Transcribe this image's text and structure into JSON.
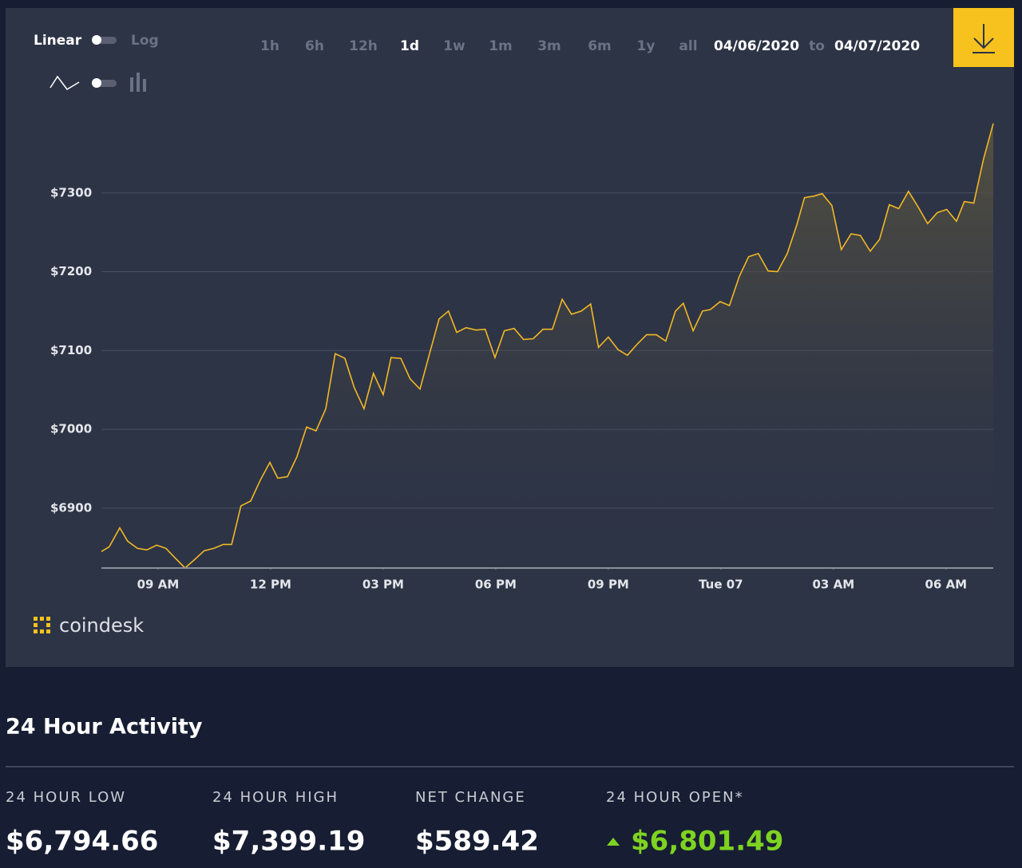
{
  "controls": {
    "scale_left": "Linear",
    "scale_right": "Log",
    "ranges": [
      "1h",
      "6h",
      "12h",
      "1d",
      "1w",
      "1m",
      "3m",
      "6m",
      "1y",
      "all"
    ],
    "active_range": 3,
    "date_from": "04/06/2020",
    "date_sep": "to",
    "date_to": "04/07/2020"
  },
  "brand": "coindesk",
  "chart_data": {
    "type": "area",
    "x": [
      7.49,
      7.7,
      7.98,
      8.19,
      8.45,
      8.7,
      8.96,
      9.21,
      9.47,
      9.72,
      9.98,
      10.23,
      10.49,
      10.74,
      10.96,
      11.21,
      11.47,
      11.72,
      11.98,
      12.19,
      12.45,
      12.7,
      12.96,
      13.21,
      13.47,
      13.72,
      13.98,
      14.23,
      14.49,
      14.74,
      15.0,
      15.21,
      15.47,
      15.72,
      15.98,
      16.23,
      16.49,
      16.74,
      16.96,
      17.21,
      17.47,
      17.72,
      17.98,
      18.23,
      18.49,
      18.74,
      19.0,
      19.26,
      19.51,
      19.77,
      20.02,
      20.28,
      20.53,
      20.74,
      21.0,
      21.26,
      21.51,
      21.77,
      22.02,
      22.28,
      22.53,
      22.79,
      23.0,
      23.26,
      23.51,
      23.72,
      23.98,
      24.23,
      24.49,
      24.74,
      25.0,
      25.26,
      25.51,
      25.77,
      26.02,
      26.23,
      26.49,
      26.7,
      26.96,
      27.21,
      27.47,
      27.72,
      27.98,
      28.23,
      28.49,
      28.74,
      29.0,
      29.26,
      29.51,
      29.77,
      30.02,
      30.28,
      30.49,
      30.74,
      31.0,
      31.26
    ],
    "series": [
      {
        "color": "#f2b824",
        "values": [
          6845,
          6851,
          6875,
          6858,
          6849,
          6847,
          6853,
          6849,
          6836,
          6824,
          6835,
          6846,
          6849,
          6854,
          6854,
          6903,
          6909,
          6935,
          6958,
          6938,
          6940,
          6965,
          7003,
          6998,
          7026,
          7096,
          7090,
          7053,
          7026,
          7071,
          7044,
          7091,
          7090,
          7064,
          7051,
          7095,
          7140,
          7150,
          7123,
          7129,
          7126,
          7127,
          7091,
          7125,
          7128,
          7114,
          7115,
          7127,
          7127,
          7165,
          7146,
          7150,
          7159,
          7104,
          7117,
          7101,
          7094,
          7108,
          7120,
          7120,
          7112,
          7150,
          7160,
          7125,
          7150,
          7152,
          7162,
          7157,
          7194,
          7219,
          7223,
          7201,
          7200,
          7223,
          7259,
          7294,
          7296,
          7299,
          7284,
          7228,
          7248,
          7246,
          7226,
          7241,
          7285,
          7280,
          7302,
          7282,
          7261,
          7275,
          7279,
          7264,
          7289,
          7287,
          7343,
          7388
        ]
      }
    ],
    "xlim": [
      7.49,
      31.26
    ],
    "xticks": [
      {
        "value": 9,
        "label": "09 AM"
      },
      {
        "value": 12,
        "label": "12 PM"
      },
      {
        "value": 15,
        "label": "03 PM"
      },
      {
        "value": 18,
        "label": "06 PM"
      },
      {
        "value": 21,
        "label": "09 PM"
      },
      {
        "value": 24,
        "label": "Tue 07"
      },
      {
        "value": 27,
        "label": "03 AM"
      },
      {
        "value": 30,
        "label": "06 AM"
      }
    ],
    "ylim": [
      6824,
      7403
    ],
    "yticks": [
      {
        "value": 6900,
        "label": "$6900"
      },
      {
        "value": 7000,
        "label": "$7000"
      },
      {
        "value": 7100,
        "label": "$7100"
      },
      {
        "value": 7200,
        "label": "$7200"
      },
      {
        "value": 7300,
        "label": "$7300"
      }
    ],
    "grid": true
  },
  "activity": {
    "title": "24 Hour Activity",
    "stats": [
      {
        "label": "24 HOUR LOW",
        "value": "$6,794.66"
      },
      {
        "label": "24 HOUR HIGH",
        "value": "$7,399.19"
      },
      {
        "label": "NET CHANGE",
        "value": "$589.42"
      },
      {
        "label": "24 HOUR OPEN*",
        "value": "$6,801.49"
      }
    ]
  }
}
